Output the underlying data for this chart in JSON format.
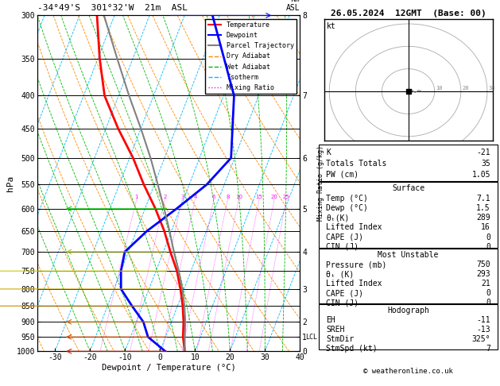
{
  "title_left": "-34°49'S  301°32'W  21m  ASL",
  "title_right": "26.05.2024  12GMT  (Base: 00)",
  "xlabel": "Dewpoint / Temperature (°C)",
  "ylabel_left": "hPa",
  "pressure_levels": [
    300,
    350,
    400,
    450,
    500,
    550,
    600,
    650,
    700,
    750,
    800,
    850,
    900,
    950,
    1000
  ],
  "xlim": [
    -35,
    40
  ],
  "skew_factor": 37,
  "temp_data": {
    "pressure": [
      1000,
      950,
      900,
      850,
      800,
      750,
      700,
      650,
      600,
      550,
      500,
      450,
      400,
      350,
      300
    ],
    "temp": [
      7.1,
      5.0,
      3.5,
      1.5,
      -1.0,
      -4.0,
      -8.0,
      -12.0,
      -17.0,
      -23.0,
      -29.0,
      -36.5,
      -44.0,
      -49.5,
      -55.0
    ]
  },
  "dewp_data": {
    "pressure": [
      1000,
      950,
      900,
      850,
      800,
      750,
      700,
      650,
      600,
      550,
      500,
      400,
      300
    ],
    "dewp": [
      1.5,
      -5.0,
      -8.0,
      -13.0,
      -18.0,
      -20.0,
      -21.0,
      -17.0,
      -11.0,
      -5.0,
      -1.0,
      -7.0,
      -22.0
    ]
  },
  "parcel_data": {
    "pressure": [
      1000,
      950,
      900,
      850,
      800,
      750,
      700,
      650,
      600,
      550,
      500,
      450,
      400,
      350,
      300
    ],
    "temp": [
      7.1,
      5.5,
      4.0,
      2.0,
      -0.5,
      -3.5,
      -7.0,
      -10.5,
      -14.5,
      -19.0,
      -24.0,
      -30.0,
      -37.0,
      -44.5,
      -53.0
    ]
  },
  "mixing_ratio_values": [
    1,
    2,
    3,
    4,
    6,
    8,
    10,
    15,
    20,
    25
  ],
  "km_ticks": {
    "pressures": [
      300,
      400,
      500,
      600,
      700,
      800,
      900,
      950,
      1000
    ],
    "km_vals": [
      8,
      7,
      6,
      5,
      4,
      3,
      2,
      1,
      0
    ]
  },
  "stats": {
    "K": "-21",
    "Totals Totals": "35",
    "PW (cm)": "1.05",
    "Surface": {
      "Temp (oC)": "7.1",
      "Dewp (oC)": "1.5",
      "theta_eK": "289",
      "Lifted Index": "16",
      "CAPE (J)": "0",
      "CIN (J)": "0"
    },
    "Most Unstable": {
      "Pressure (mb)": "750",
      "theta_e_K": "293",
      "Lifted Index": "21",
      "CAPE (J)": "0",
      "CIN (J)": "0"
    },
    "Hodograph": {
      "EH": "-11",
      "SREH": "-13",
      "StmDir": "325°",
      "StmSpd (kt)": "7"
    }
  },
  "colors": {
    "temp": "#ff0000",
    "dewp": "#0000ff",
    "parcel": "#808080",
    "dry_adiabat": "#ff8800",
    "wet_adiabat": "#00bb00",
    "isotherm": "#00bbff",
    "mixing_ratio": "#ff00ff",
    "background": "#ffffff",
    "grid": "#000000"
  },
  "lcl_pressure": 950,
  "wind_barb_levels": [
    {
      "pressure": 300,
      "color": "#0000ff",
      "type": "barb",
      "u": 1,
      "v": 5
    },
    {
      "pressure": 400,
      "color": "#00aaff",
      "type": "barb",
      "u": 0,
      "v": 4
    },
    {
      "pressure": 500,
      "color": "#00cccc",
      "type": "barb",
      "u": 0,
      "v": 3
    },
    {
      "pressure": 600,
      "color": "#00cc00",
      "type": "barb",
      "u": -1,
      "v": 2
    },
    {
      "pressure": 700,
      "color": "#aacc00",
      "type": "barb",
      "u": -1,
      "v": 2
    },
    {
      "pressure": 750,
      "color": "#cccc00",
      "type": "barb",
      "u": -2,
      "v": 2
    },
    {
      "pressure": 800,
      "color": "#ccaa00",
      "type": "barb",
      "u": -2,
      "v": 1
    },
    {
      "pressure": 850,
      "color": "#cc8800",
      "type": "barb",
      "u": -2,
      "v": 1
    },
    {
      "pressure": 900,
      "color": "#cc6600",
      "type": "barb",
      "u": -1,
      "v": 1
    },
    {
      "pressure": 950,
      "color": "#cc4400",
      "type": "barb",
      "u": -1,
      "v": 1
    },
    {
      "pressure": 1000,
      "color": "#cc2200",
      "type": "barb",
      "u": -1,
      "v": 1
    }
  ]
}
